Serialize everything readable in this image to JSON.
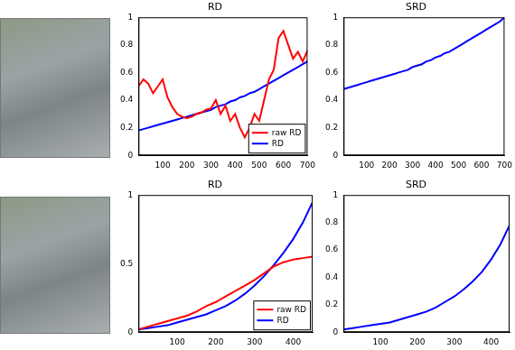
{
  "chart_data": [
    {
      "type": "line",
      "title": "RD",
      "x": [
        0,
        20,
        40,
        60,
        80,
        100,
        120,
        140,
        160,
        180,
        200,
        220,
        240,
        260,
        280,
        300,
        320,
        340,
        360,
        380,
        400,
        420,
        440,
        460,
        480,
        500,
        520,
        540,
        560,
        580,
        600,
        620,
        640,
        660,
        680,
        700
      ],
      "series": [
        {
          "name": "raw RD",
          "color": "#ff0000",
          "values": [
            0.5,
            0.55,
            0.52,
            0.45,
            0.5,
            0.55,
            0.42,
            0.35,
            0.3,
            0.28,
            0.27,
            0.28,
            0.3,
            0.31,
            0.33,
            0.34,
            0.4,
            0.3,
            0.36,
            0.25,
            0.3,
            0.2,
            0.13,
            0.2,
            0.3,
            0.25,
            0.4,
            0.55,
            0.62,
            0.85,
            0.9,
            0.8,
            0.7,
            0.75,
            0.68,
            0.76
          ]
        },
        {
          "name": "RD",
          "color": "#0000ff",
          "values": [
            0.18,
            0.19,
            0.2,
            0.21,
            0.22,
            0.23,
            0.24,
            0.25,
            0.26,
            0.27,
            0.28,
            0.29,
            0.3,
            0.31,
            0.32,
            0.33,
            0.35,
            0.36,
            0.37,
            0.39,
            0.4,
            0.42,
            0.43,
            0.45,
            0.46,
            0.48,
            0.5,
            0.52,
            0.54,
            0.56,
            0.58,
            0.6,
            0.62,
            0.64,
            0.66,
            0.68
          ]
        }
      ],
      "xlim": [
        0,
        700
      ],
      "xticks": [
        100,
        200,
        300,
        400,
        500,
        600,
        700
      ],
      "ylim": [
        0,
        1
      ],
      "yticks": [
        0,
        0.2,
        0.4,
        0.6,
        0.8,
        1
      ],
      "legend": "lower right",
      "grid": false
    },
    {
      "type": "line",
      "title": "SRD",
      "x": [
        0,
        20,
        40,
        60,
        80,
        100,
        120,
        140,
        160,
        180,
        200,
        220,
        240,
        260,
        280,
        300,
        320,
        340,
        360,
        380,
        400,
        420,
        440,
        460,
        480,
        500,
        520,
        540,
        560,
        580,
        600,
        620,
        640,
        660,
        680,
        700
      ],
      "series": [
        {
          "name": "SRD",
          "color": "#0000ff",
          "values": [
            0.48,
            0.49,
            0.5,
            0.51,
            0.52,
            0.53,
            0.54,
            0.55,
            0.56,
            0.57,
            0.58,
            0.59,
            0.6,
            0.61,
            0.62,
            0.64,
            0.65,
            0.66,
            0.68,
            0.69,
            0.71,
            0.72,
            0.74,
            0.75,
            0.77,
            0.79,
            0.81,
            0.83,
            0.85,
            0.87,
            0.89,
            0.91,
            0.93,
            0.95,
            0.97,
            1.0
          ]
        }
      ],
      "xlim": [
        0,
        700
      ],
      "xticks": [
        100,
        200,
        300,
        400,
        500,
        600,
        700
      ],
      "ylim": [
        0,
        1
      ],
      "yticks": [
        0,
        0.2,
        0.4,
        0.6,
        0.8,
        1
      ],
      "grid": false
    },
    {
      "type": "line",
      "title": "RD",
      "x": [
        0,
        25,
        50,
        75,
        100,
        125,
        150,
        175,
        200,
        225,
        250,
        275,
        300,
        325,
        350,
        375,
        400,
        425,
        450
      ],
      "series": [
        {
          "name": "raw RD",
          "color": "#ff0000",
          "values": [
            0.02,
            0.04,
            0.06,
            0.08,
            0.1,
            0.12,
            0.15,
            0.19,
            0.22,
            0.26,
            0.3,
            0.34,
            0.38,
            0.43,
            0.48,
            0.51,
            0.53,
            0.54,
            0.55
          ]
        },
        {
          "name": "RD",
          "color": "#0000ff",
          "values": [
            0.02,
            0.03,
            0.04,
            0.05,
            0.07,
            0.09,
            0.11,
            0.13,
            0.16,
            0.19,
            0.23,
            0.28,
            0.34,
            0.41,
            0.49,
            0.58,
            0.68,
            0.8,
            0.95
          ]
        }
      ],
      "xlim": [
        0,
        450
      ],
      "xticks": [
        100,
        200,
        300,
        400
      ],
      "ylim": [
        0,
        1
      ],
      "yticks": [
        0,
        0.5,
        1
      ],
      "legend": "lower right",
      "grid": false
    },
    {
      "type": "line",
      "title": "SRD",
      "x": [
        0,
        25,
        50,
        75,
        100,
        125,
        150,
        175,
        200,
        225,
        250,
        275,
        300,
        325,
        350,
        375,
        400,
        425,
        450
      ],
      "series": [
        {
          "name": "SRD",
          "color": "#0000ff",
          "values": [
            0.02,
            0.03,
            0.04,
            0.05,
            0.06,
            0.07,
            0.09,
            0.11,
            0.13,
            0.15,
            0.18,
            0.22,
            0.26,
            0.31,
            0.37,
            0.44,
            0.53,
            0.64,
            0.78
          ]
        }
      ],
      "xlim": [
        0,
        450
      ],
      "xticks": [
        100,
        200,
        300,
        400
      ],
      "ylim": [
        0,
        1
      ],
      "yticks": [
        0,
        0.2,
        0.4,
        0.6,
        0.8,
        1
      ],
      "grid": false
    }
  ]
}
